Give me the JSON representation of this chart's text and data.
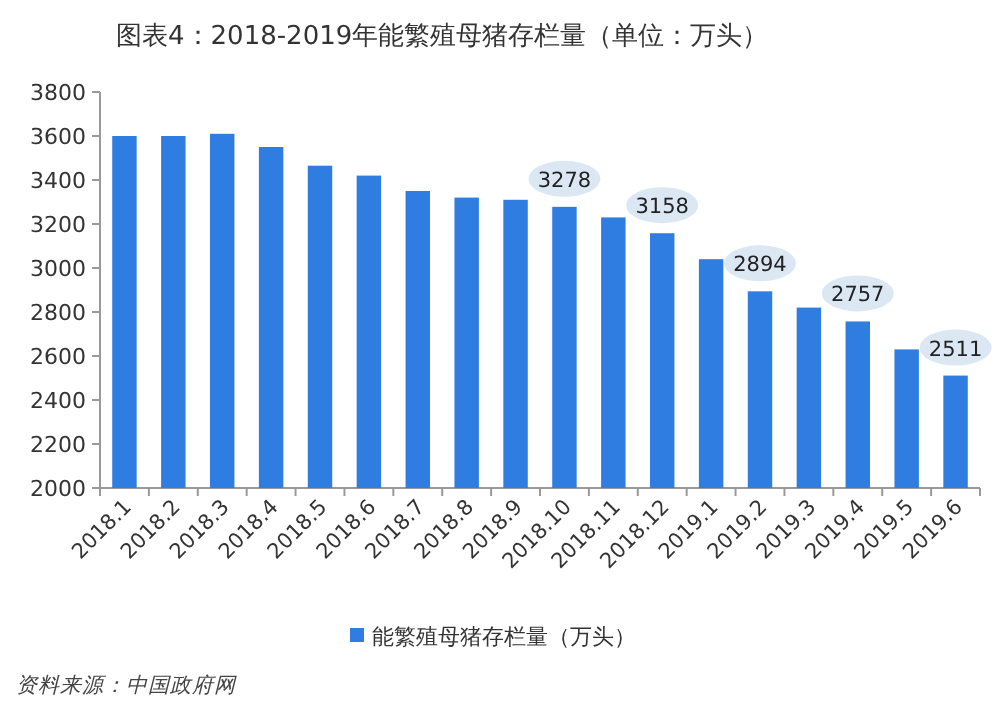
{
  "chart_data": {
    "type": "bar",
    "title": "图表4：2018-2019年能繁殖母猪存栏量（单位：万头）",
    "categories": [
      "2018.1",
      "2018.2",
      "2018.3",
      "2018.4",
      "2018.5",
      "2018.6",
      "2018.7",
      "2018.8",
      "2018.9",
      "2018.10",
      "2018.11",
      "2018.12",
      "2019.1",
      "2019.2",
      "2019.3",
      "2019.4",
      "2019.5",
      "2019.6"
    ],
    "series": [
      {
        "name": "能繁殖母猪存栏量（万头）",
        "color": "#2f7de1",
        "values": [
          3600,
          3600,
          3610,
          3550,
          3465,
          3420,
          3350,
          3320,
          3310,
          3278,
          3230,
          3158,
          3040,
          2894,
          2820,
          2757,
          2630,
          2511
        ],
        "value_labels": [
          null,
          null,
          null,
          null,
          null,
          null,
          null,
          null,
          null,
          "3278",
          null,
          "3158",
          null,
          "2894",
          null,
          "2757",
          null,
          "2511"
        ]
      }
    ],
    "ylim": [
      2000,
      3800
    ],
    "yticks": [
      2000,
      2200,
      2400,
      2600,
      2800,
      3000,
      3200,
      3400,
      3600,
      3800
    ],
    "legend": "bottom",
    "annotations": [
      "资料来源：中国政府网"
    ]
  }
}
